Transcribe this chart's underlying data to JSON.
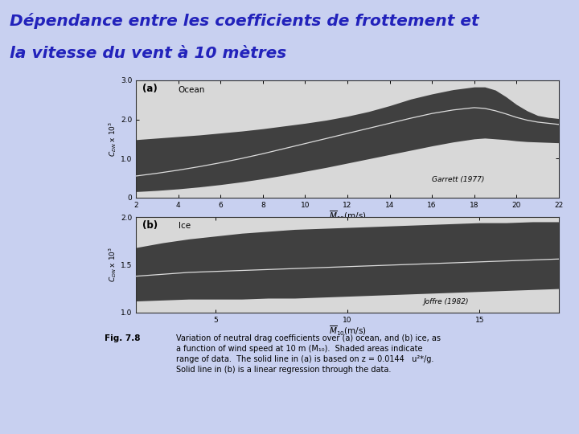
{
  "title_line1": "Dépendance entre les coefficients de frottement et",
  "title_line2": "la vitesse du vent à 10 mètres",
  "title_color": "#2222bb",
  "title_bg_color": "#c8d0f0",
  "title_border_color": "#9090c0",
  "title_fontsize": 14.5,
  "fig_bg_color": "#c8d0f0",
  "panel_a_label": "(a)",
  "panel_a_sublabel": "Ocean",
  "panel_a_ref": "Garrett (1977)",
  "panel_a_xlim": [
    2,
    22
  ],
  "panel_a_ylim": [
    0,
    3.0
  ],
  "panel_a_xticks": [
    2,
    4,
    6,
    8,
    10,
    12,
    14,
    16,
    18,
    20,
    22
  ],
  "panel_a_yticks": [
    0,
    1.0,
    2.0,
    3.0
  ],
  "panel_a_ytick_labels": [
    "0",
    "1.0",
    "2.0",
    "3.0"
  ],
  "panel_b_label": "(b)",
  "panel_b_sublabel": "Ice",
  "panel_b_ref": "Joffre (1982)",
  "panel_b_xlim": [
    2,
    18
  ],
  "panel_b_ylim": [
    1.0,
    2.0
  ],
  "panel_b_xticks": [
    5,
    10,
    15
  ],
  "panel_b_yticks": [
    1.0,
    1.5,
    2.0
  ],
  "panel_b_ytick_labels": [
    "1.0",
    "1.5",
    "2.0"
  ],
  "caption_fig": "Fig. 7.8",
  "caption_text": "Variation of neutral drag coefficients over (a) ocean, and (b) ice, as\na function of wind speed at 10 m (M₁₀).  Shaded areas indicate\nrange of data.  The solid line in (a) is based on z = 0.0144   u²*/g.\nSolid line in (b) is a linear regression through the data.",
  "shaded_color": "#404040",
  "line_color": "#dddddd",
  "axes_bg": "#d8d8d8",
  "outer_bg": "#d0d0d0",
  "ocean_x": [
    2,
    3,
    4,
    5,
    6,
    7,
    8,
    9,
    10,
    11,
    12,
    13,
    14,
    15,
    16,
    17,
    18,
    18.5,
    19,
    19.5,
    20,
    20.5,
    21,
    21.5,
    22
  ],
  "ocean_upper": [
    1.48,
    1.52,
    1.56,
    1.6,
    1.65,
    1.7,
    1.76,
    1.83,
    1.9,
    1.98,
    2.08,
    2.2,
    2.35,
    2.52,
    2.65,
    2.76,
    2.83,
    2.83,
    2.75,
    2.58,
    2.38,
    2.22,
    2.1,
    2.05,
    2.02
  ],
  "ocean_lower": [
    0.15,
    0.18,
    0.22,
    0.27,
    0.33,
    0.4,
    0.48,
    0.57,
    0.67,
    0.77,
    0.88,
    0.99,
    1.1,
    1.21,
    1.32,
    1.42,
    1.5,
    1.52,
    1.5,
    1.48,
    1.45,
    1.43,
    1.42,
    1.41,
    1.4
  ],
  "ocean_line": [
    0.55,
    0.62,
    0.7,
    0.79,
    0.89,
    1.0,
    1.12,
    1.25,
    1.38,
    1.51,
    1.64,
    1.77,
    1.9,
    2.03,
    2.15,
    2.24,
    2.3,
    2.28,
    2.22,
    2.14,
    2.05,
    1.98,
    1.93,
    1.9,
    1.87
  ],
  "ice_x": [
    2,
    3,
    4,
    5,
    6,
    7,
    8,
    9,
    10,
    11,
    12,
    13,
    14,
    15,
    16,
    17,
    18
  ],
  "ice_upper": [
    1.68,
    1.73,
    1.77,
    1.8,
    1.83,
    1.85,
    1.87,
    1.88,
    1.89,
    1.9,
    1.91,
    1.92,
    1.93,
    1.94,
    1.94,
    1.95,
    1.95
  ],
  "ice_lower": [
    1.12,
    1.13,
    1.14,
    1.14,
    1.14,
    1.15,
    1.15,
    1.16,
    1.17,
    1.18,
    1.19,
    1.2,
    1.21,
    1.22,
    1.23,
    1.24,
    1.25
  ],
  "ice_line": [
    1.38,
    1.4,
    1.42,
    1.43,
    1.44,
    1.45,
    1.46,
    1.47,
    1.48,
    1.49,
    1.5,
    1.51,
    1.52,
    1.53,
    1.54,
    1.55,
    1.56
  ]
}
